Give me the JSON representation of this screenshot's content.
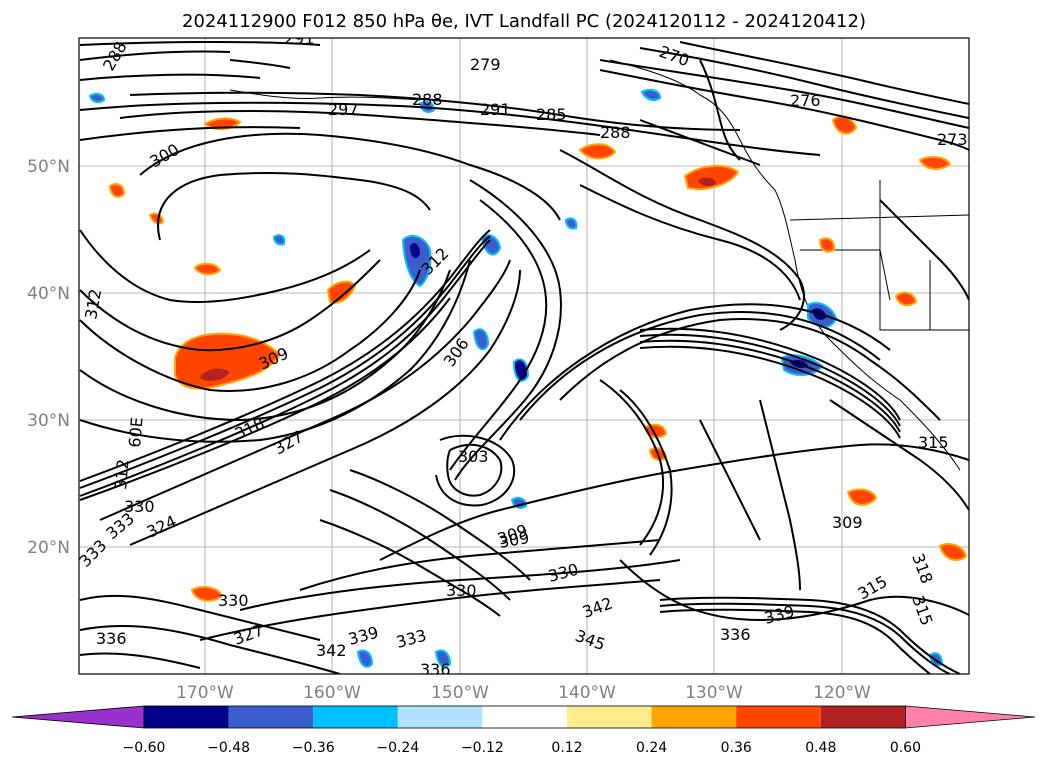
{
  "title": "2024112900 F012 850 hPa θe, IVT Landfall PC (2024120112 - 2024120412)",
  "map": {
    "lat_labels": [
      "50°N",
      "40°N",
      "30°N",
      "20°N"
    ],
    "lon_labels": [
      "170°W",
      "160°W",
      "150°W",
      "140°W",
      "130°W",
      "120°W"
    ],
    "grid": true,
    "contour_labels": [
      "288",
      "291",
      "279",
      "270",
      "297",
      "288",
      "291",
      "285",
      "288",
      "276",
      "273",
      "300",
      "312",
      "312",
      "309",
      "306",
      "318",
      "327",
      "312",
      "60E",
      "330",
      "333",
      "324",
      "333",
      "330",
      "309",
      "336",
      "330",
      "342",
      "339",
      "333",
      "330",
      "336",
      "345",
      "342",
      "336",
      "339",
      "315",
      "315",
      "318",
      "309",
      "315",
      "309",
      "327",
      "303"
    ]
  },
  "colorbar": {
    "tick_labels": [
      "−0.60",
      "−0.48",
      "−0.36",
      "−0.24",
      "−0.12",
      "0.12",
      "0.24",
      "0.36",
      "0.48",
      "0.60"
    ],
    "colors": [
      "#9932CC",
      "#00008B",
      "#3A5FCD",
      "#00BFFF",
      "#B0E2FF",
      "#FFFFFF",
      "#FFEC8B",
      "#FFA500",
      "#FF4500",
      "#B22222",
      "#FF82AB"
    ],
    "extend": "both"
  }
}
